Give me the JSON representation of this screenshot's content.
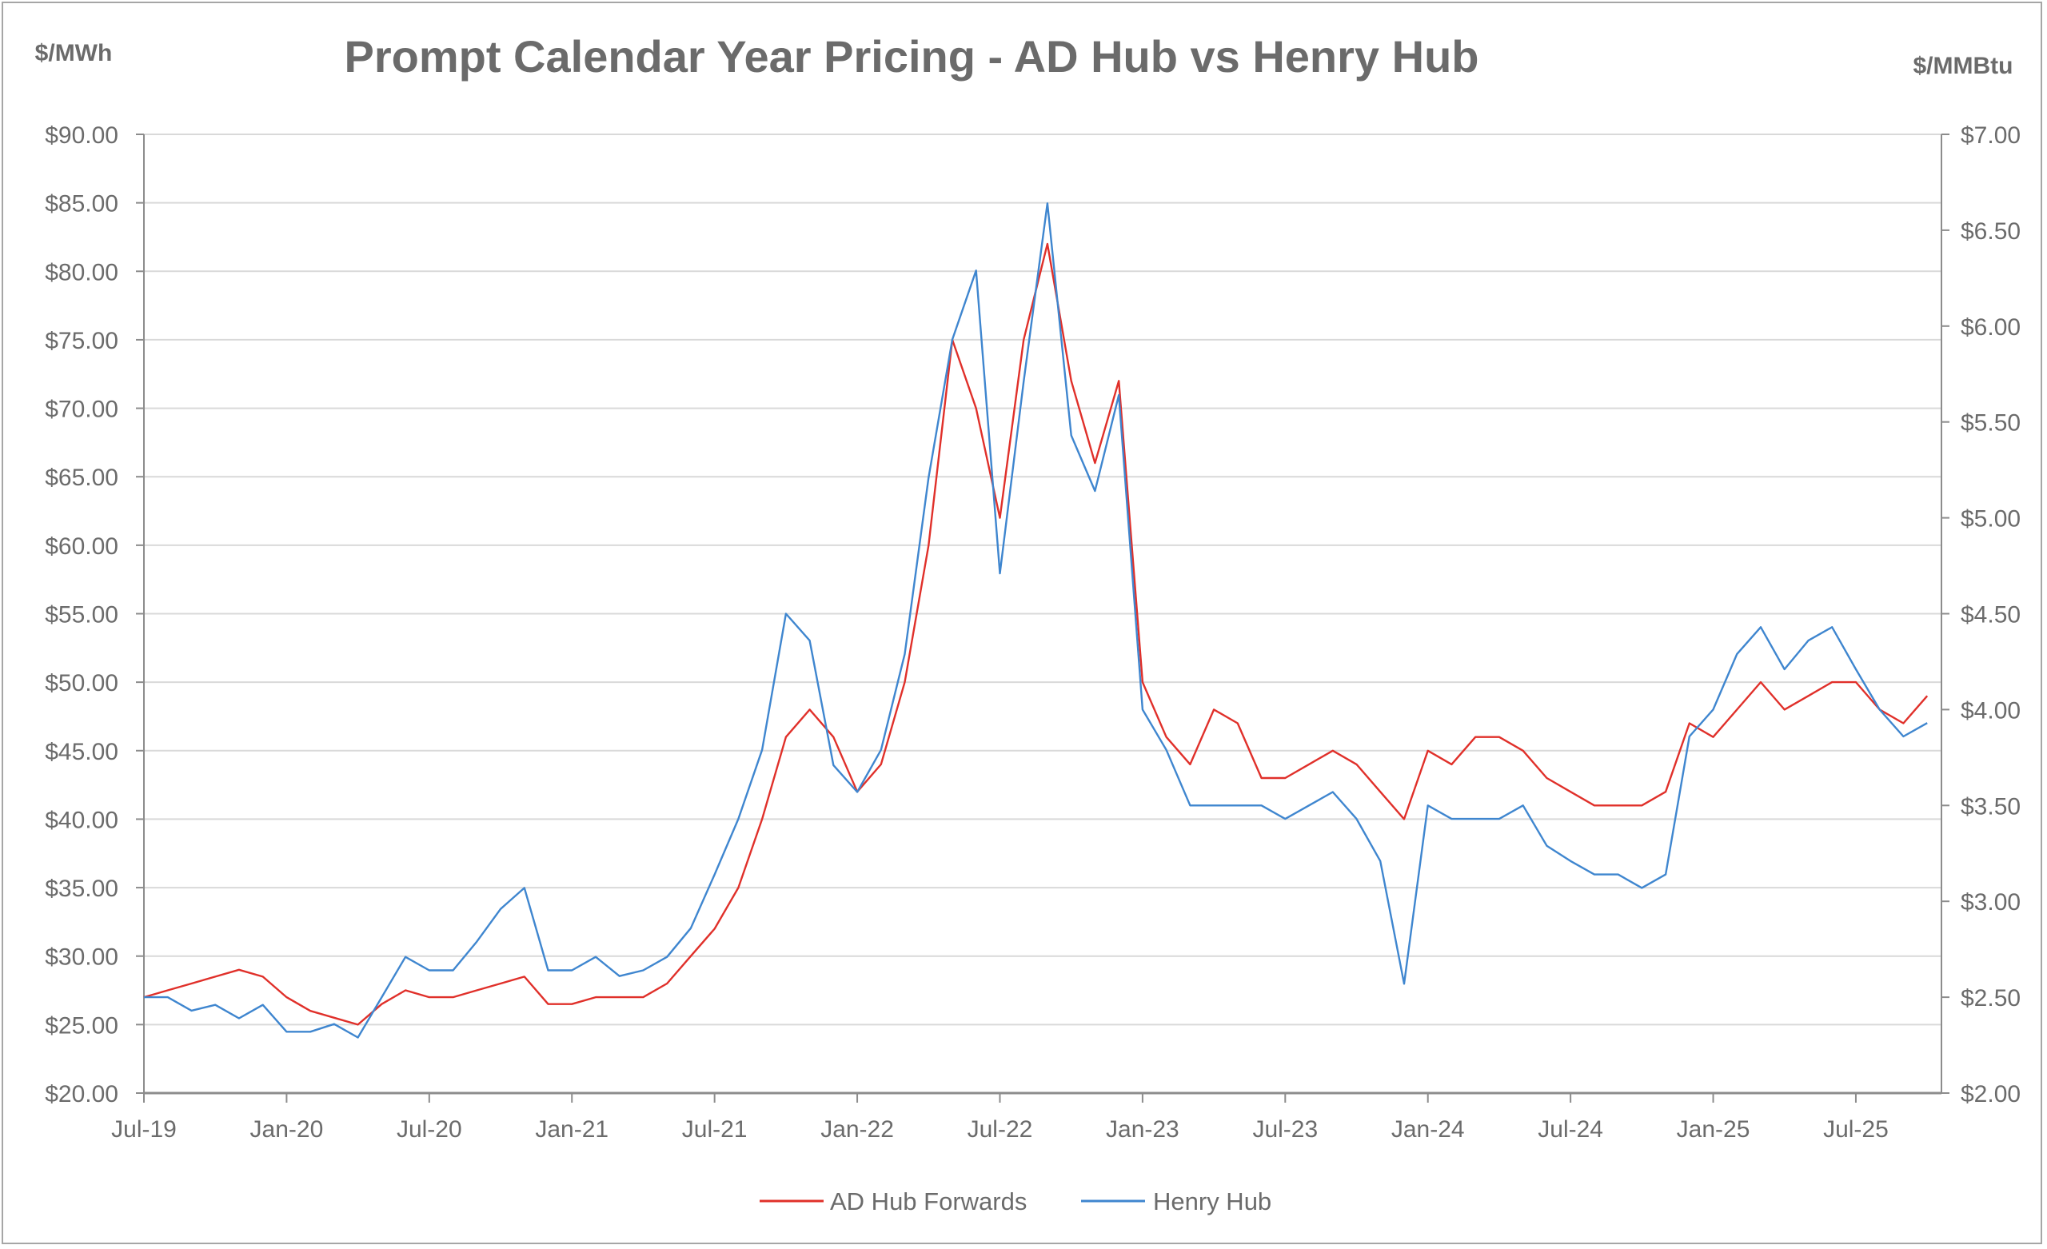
{
  "chart_data": {
    "type": "line",
    "title": "Prompt Calendar Year Pricing - AD Hub vs Henry Hub",
    "ylabel_left": "$/MWh",
    "ylabel_right": "$/MMBtu",
    "ylim_left": [
      20,
      90
    ],
    "ylim_right": [
      2,
      7
    ],
    "yticks_left": [
      "$90.00",
      "$85.00",
      "$80.00",
      "$75.00",
      "$70.00",
      "$65.00",
      "$60.00",
      "$55.00",
      "$50.00",
      "$45.00",
      "$40.00",
      "$35.00",
      "$30.00",
      "$25.00",
      "$20.00"
    ],
    "yticks_right": [
      "$7.00",
      "$6.50",
      "$6.00",
      "$5.50",
      "$5.00",
      "$4.50",
      "$4.00",
      "$3.50",
      "$3.00",
      "$2.50",
      "$2.00"
    ],
    "xticks": [
      "Jul-19",
      "Jan-20",
      "Jul-20",
      "Jan-21",
      "Jul-21",
      "Jan-22",
      "Jul-22",
      "Jan-23",
      "Jul-23",
      "Jan-24",
      "Jul-24",
      "Jan-25",
      "Jul-25"
    ],
    "x_start": "2019-07",
    "x_months_span": 75.6,
    "grid": true,
    "legend_position": "bottom",
    "colors": {
      "ad_hub": "#e0302a",
      "henry_hub": "#3f86cf",
      "text": "#6b6b6b",
      "grid": "#d9d9d9",
      "axis": "#8c8c8c"
    },
    "series": [
      {
        "name": "AD Hub Forwards",
        "axis": "left",
        "color": "#e0302a",
        "values": [
          27,
          27.5,
          28,
          28.5,
          29,
          28.5,
          27,
          26,
          25.5,
          25,
          26.5,
          27.5,
          27,
          27,
          27.5,
          28,
          28.5,
          26.5,
          26.5,
          27,
          27,
          27,
          28,
          30,
          32,
          35,
          40,
          46,
          48,
          46,
          42,
          44,
          50,
          60,
          75,
          70,
          62,
          75,
          82,
          72,
          66,
          72,
          50,
          46,
          44,
          48,
          47,
          43,
          43,
          44,
          45,
          44,
          42,
          40,
          45,
          44,
          46,
          46,
          45,
          43,
          42,
          41,
          41,
          41,
          42,
          47,
          46,
          48,
          50,
          48,
          49,
          50,
          50,
          48,
          47,
          49
        ]
      },
      {
        "name": "Henry Hub",
        "axis": "right",
        "color": "#3f86cf",
        "values": [
          2.5,
          2.5,
          2.43,
          2.46,
          2.39,
          2.46,
          2.32,
          2.32,
          2.36,
          2.29,
          2.5,
          2.71,
          2.64,
          2.64,
          2.79,
          2.96,
          3.07,
          2.64,
          2.64,
          2.71,
          2.61,
          2.64,
          2.71,
          2.86,
          3.14,
          3.43,
          3.79,
          4.5,
          4.36,
          3.71,
          3.57,
          3.79,
          4.29,
          5.21,
          5.93,
          6.29,
          4.71,
          5.71,
          6.64,
          5.43,
          5.14,
          5.64,
          4.0,
          3.79,
          3.5,
          3.5,
          3.5,
          3.5,
          3.43,
          3.5,
          3.57,
          3.43,
          3.21,
          2.57,
          3.5,
          3.43,
          3.43,
          3.43,
          3.5,
          3.29,
          3.21,
          3.14,
          3.14,
          3.07,
          3.14,
          3.86,
          4.0,
          4.29,
          4.43,
          4.21,
          4.36,
          4.43,
          4.21,
          4.0,
          3.86,
          3.93
        ]
      }
    ]
  }
}
